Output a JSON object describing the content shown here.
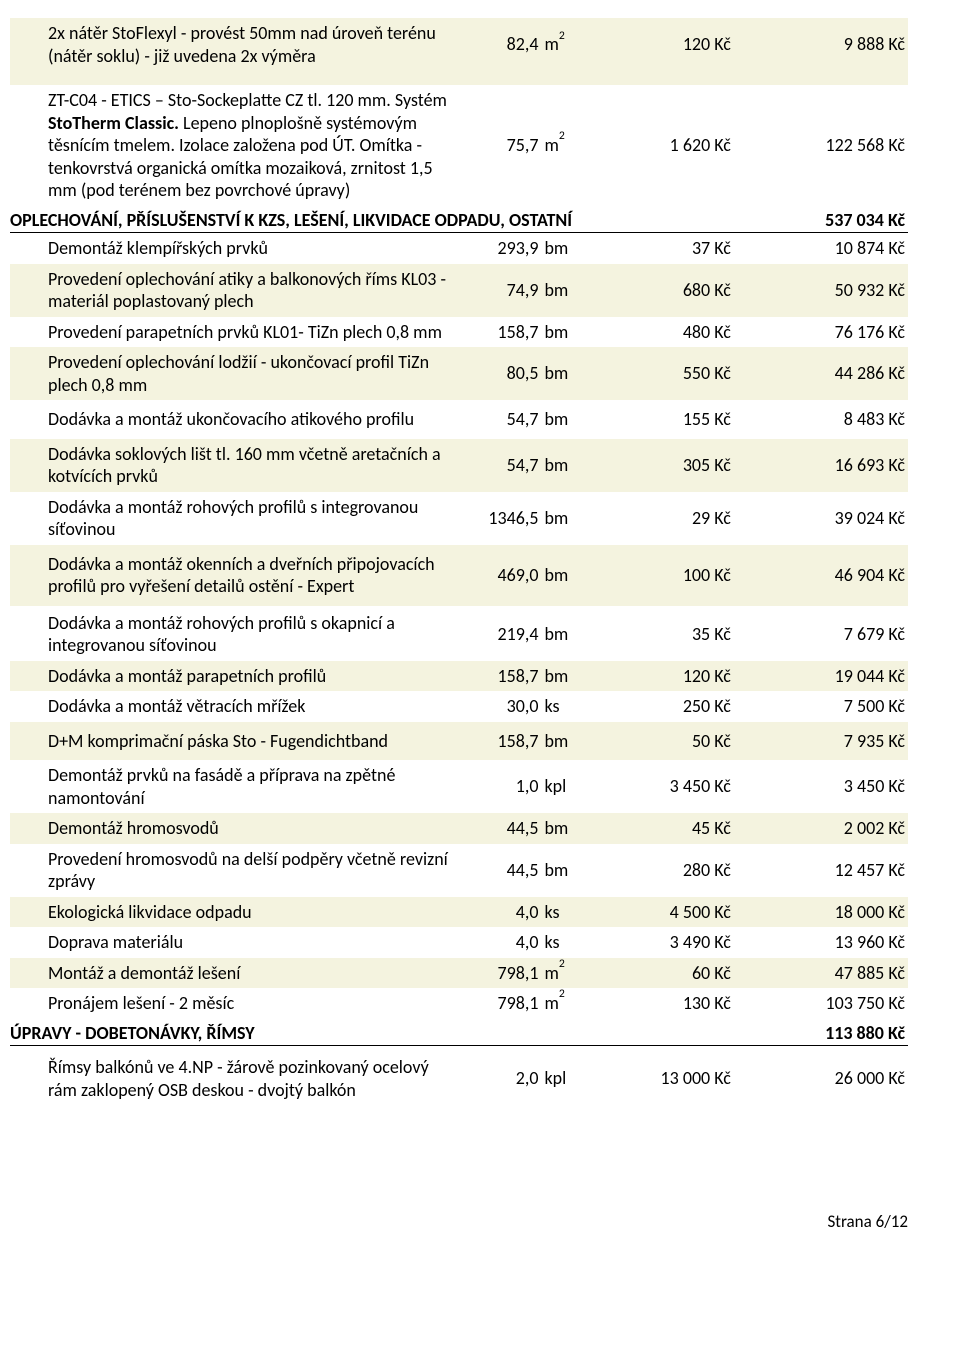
{
  "colors": {
    "stripe": "#f4f3df",
    "text": "#000000",
    "background": "#ffffff"
  },
  "preRows": [
    {
      "desc": "2x nátěr StoFlexyl - provést 50mm nad úroveň terénu (nátěr soklu) - již uvedena 2x výměra",
      "qty": "82,4",
      "unit": "m2",
      "price": "120 Kč",
      "total": "9 888 Kč",
      "stripe": true,
      "padBottom": 18
    },
    {
      "desc_html": "ZT-C04 - ETICS – Sto-Sockeplatte CZ tl. 120 mm. Systém <b>StoTherm Classic.</b> Lepeno plnoplošně systémovým těsnícím tmelem. Izolace založena pod ÚT. Omítka - tenkovrstvá organická omítka mozaiková, zrnitost 1,5 mm (pod terénem bez povrchové úpravy)",
      "qty": "75,7",
      "unit": "m2",
      "price": "1 620 Kč",
      "total": "122 568 Kč",
      "stripe": false
    }
  ],
  "sections": [
    {
      "title": "OPLECHOVÁNÍ, PŘÍSLUŠENSTVÍ K KZS, LEŠENÍ, LIKVIDACE ODPADU, OSTATNÍ",
      "total": "537 034 Kč",
      "rows": [
        {
          "desc": "Demontáž klempířských prvků",
          "qty": "293,9",
          "unit": "bm",
          "price": "37 Kč",
          "total": "10 874 Kč",
          "stripe": false
        },
        {
          "desc": "Provedení oplechování atiky a balkonových říms KL03 - materiál poplastovaný plech",
          "qty": "74,9",
          "unit": "bm",
          "price": "680 Kč",
          "total": "50 932 Kč",
          "stripe": true
        },
        {
          "desc": "Provedení parapetních prvků KL01- TiZn plech 0,8 mm",
          "qty": "158,7",
          "unit": "bm",
          "price": "480 Kč",
          "total": "76 176 Kč",
          "stripe": false
        },
        {
          "desc": "Provedení oplechování lodžií - ukončovací profil TiZn plech 0,8 mm",
          "qty": "80,5",
          "unit": "bm",
          "price": "550 Kč",
          "total": "44 286 Kč",
          "stripe": true
        },
        {
          "desc": "Dodávka a montáž ukončovacího atikového profilu",
          "qty": "54,7",
          "unit": "bm",
          "price": "155 Kč",
          "total": "8 483 Kč",
          "stripe": false,
          "padTop": 8,
          "padBottom": 8
        },
        {
          "desc": "Dodávka soklových lišt tl. 160 mm včetně aretačních a kotvících prvků",
          "qty": "54,7",
          "unit": "bm",
          "price": "305 Kč",
          "total": "16 693 Kč",
          "stripe": true
        },
        {
          "desc": "Dodávka a montáž rohových profilů s integrovanou síťovinou",
          "qty": "1346,5",
          "unit": "bm",
          "price": "29 Kč",
          "total": "39 024 Kč",
          "stripe": false
        },
        {
          "desc": "Dodávka a montáž okenních a dveřních připojovacích profilů pro vyřešení detailů ostění - Expert",
          "qty": "469,0",
          "unit": "bm",
          "price": "100 Kč",
          "total": "46 904 Kč",
          "stripe": true,
          "padTop": 8,
          "padBottom": 8
        },
        {
          "desc": "Dodávka a montáž rohových profilů s okapnicí a integrovanou síťovinou",
          "qty": "219,4",
          "unit": "bm",
          "price": "35 Kč",
          "total": "7 679 Kč",
          "stripe": false,
          "padTop": 6
        },
        {
          "desc": "Dodávka a montáž parapetních profilů",
          "qty": "158,7",
          "unit": "bm",
          "price": "120 Kč",
          "total": "19 044 Kč",
          "stripe": true
        },
        {
          "desc": "Dodávka a montáž větracích mřížek",
          "qty": "30,0",
          "unit": "ks",
          "price": "250 Kč",
          "total": "7 500 Kč",
          "stripe": false
        },
        {
          "desc": "D+M komprimační páska Sto - Fugendichtband",
          "qty": "158,7",
          "unit": "bm",
          "price": "50 Kč",
          "total": "7 935 Kč",
          "stripe": true,
          "padTop": 8,
          "padBottom": 8
        },
        {
          "desc": "Demontáž prvků na fasádě a příprava na zpětné namontování",
          "qty": "1,0",
          "unit": "kpl",
          "price": "3 450 Kč",
          "total": "3 450 Kč",
          "stripe": false
        },
        {
          "desc": "Demontáž hromosvodů",
          "qty": "44,5",
          "unit": "bm",
          "price": "45 Kč",
          "total": "2 002 Kč",
          "stripe": true
        },
        {
          "desc": "Provedení hromosvodů na delší podpěry včetně revizní zprávy",
          "qty": "44,5",
          "unit": "bm",
          "price": "280 Kč",
          "total": "12 457 Kč",
          "stripe": false
        },
        {
          "desc": "Ekologická likvidace odpadu",
          "qty": "4,0",
          "unit": "ks",
          "price": "4 500 Kč",
          "total": "18 000 Kč",
          "stripe": true
        },
        {
          "desc": "Doprava materiálu",
          "qty": "4,0",
          "unit": "ks",
          "price": "3 490 Kč",
          "total": "13 960 Kč",
          "stripe": false
        },
        {
          "desc": "Montáž a demontáž lešení",
          "qty": "798,1",
          "unit": "m2",
          "price": "60 Kč",
          "total": "47 885 Kč",
          "stripe": true
        },
        {
          "desc": "Pronájem lešení - 2 měsíc",
          "qty": "798,1",
          "unit": "m2",
          "price": "130 Kč",
          "total": "103 750 Kč",
          "stripe": false
        }
      ]
    },
    {
      "title": "ÚPRAVY - DOBETONÁVKY, ŘÍMSY",
      "total": "113 880 Kč",
      "rows": [
        {
          "desc": "Římsy balkónů ve 4.NP - žárově pozinkovaný ocelový rám zaklopený OSB deskou - dvojtý balkón",
          "qty": "2,0",
          "unit": "kpl",
          "price": "13 000 Kč",
          "total": "26 000 Kč",
          "stripe": false,
          "padTop": 10,
          "padBottom": 10
        }
      ]
    }
  ],
  "footer": "Strana 6/12"
}
